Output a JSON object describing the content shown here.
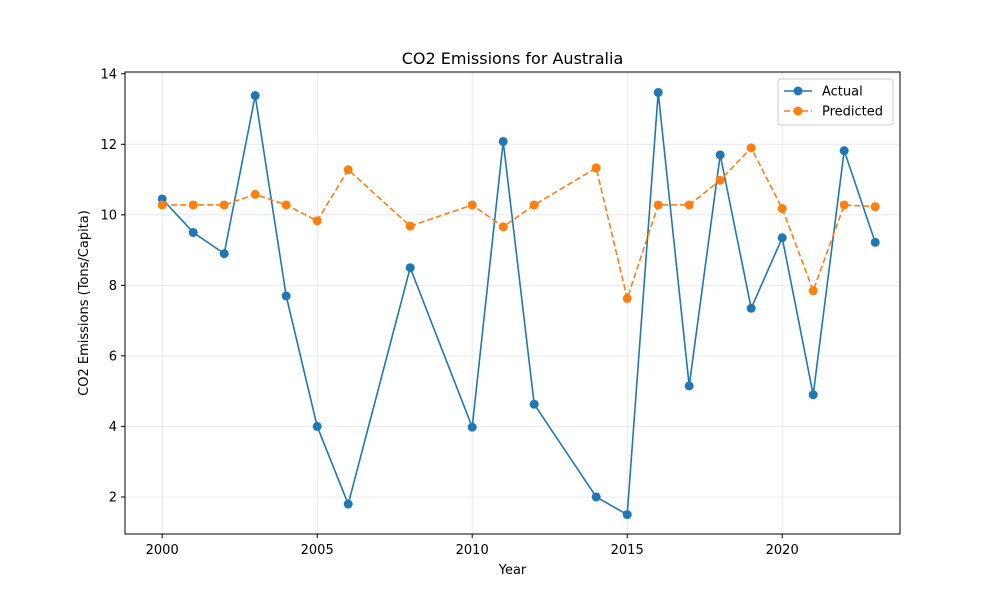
{
  "chart_data": {
    "type": "line",
    "title": "CO2 Emissions for Australia",
    "xlabel": "Year",
    "ylabel": "CO2 Emissions (Tons/Capita)",
    "xlim": [
      1998.8,
      2023.8
    ],
    "ylim": [
      0.95,
      14.05
    ],
    "x_ticks": [
      2000,
      2005,
      2010,
      2015,
      2020
    ],
    "y_ticks": [
      2,
      4,
      6,
      8,
      10,
      12,
      14
    ],
    "grid": true,
    "legend_position": "upper right",
    "series": [
      {
        "name": "Actual",
        "color": "#1f77b4",
        "linestyle": "solid",
        "marker": "circle",
        "points": [
          [
            2000,
            10.45
          ],
          [
            2001,
            9.5
          ],
          [
            2002,
            8.9
          ],
          [
            2003,
            13.38
          ],
          [
            2004,
            7.7
          ],
          [
            2005,
            4.0
          ],
          [
            2006,
            1.8
          ],
          [
            2008,
            8.5
          ],
          [
            2010,
            3.98
          ],
          [
            2011,
            12.08
          ],
          [
            2012,
            4.63
          ],
          [
            2014,
            2.0
          ],
          [
            2015,
            1.5
          ],
          [
            2016,
            13.47
          ],
          [
            2017,
            5.15
          ],
          [
            2018,
            11.7
          ],
          [
            2019,
            7.35
          ],
          [
            2020,
            9.35
          ],
          [
            2021,
            4.9
          ],
          [
            2022,
            11.82
          ],
          [
            2023,
            9.22
          ]
        ]
      },
      {
        "name": "Predicted",
        "color": "#ff7f0e",
        "linestyle": "dashed",
        "marker": "circle",
        "points": [
          [
            2000,
            10.28
          ],
          [
            2001,
            10.28
          ],
          [
            2002,
            10.28
          ],
          [
            2003,
            10.58
          ],
          [
            2004,
            10.28
          ],
          [
            2005,
            9.83
          ],
          [
            2006,
            11.28
          ],
          [
            2008,
            9.68
          ],
          [
            2010,
            10.28
          ],
          [
            2011,
            9.66
          ],
          [
            2012,
            10.28
          ],
          [
            2014,
            11.33
          ],
          [
            2015,
            7.63
          ],
          [
            2016,
            10.28
          ],
          [
            2017,
            10.28
          ],
          [
            2018,
            10.98
          ],
          [
            2019,
            11.9
          ],
          [
            2020,
            10.18
          ],
          [
            2021,
            7.85
          ],
          [
            2022,
            10.28
          ],
          [
            2023,
            10.23
          ]
        ]
      }
    ]
  }
}
